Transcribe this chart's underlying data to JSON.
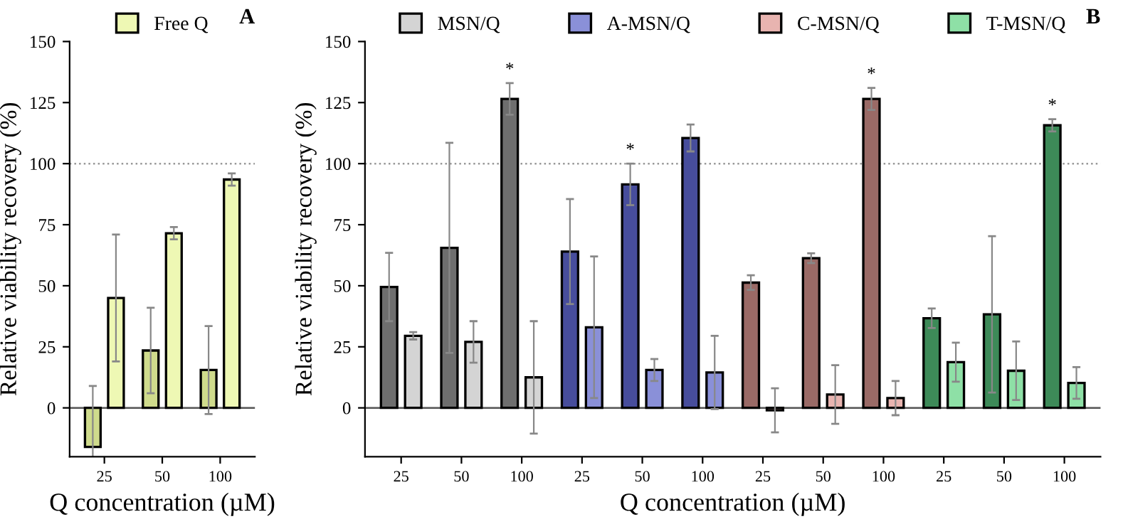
{
  "chart_data": [
    {
      "type": "bar",
      "ylabel": "Relative viability recovery (%)",
      "xlabel": "Q concentration (µM)",
      "categories": [
        "25",
        "50",
        "100"
      ],
      "ylim": [
        -20,
        150
      ],
      "yticks": [
        0,
        25,
        50,
        75,
        100,
        125,
        150
      ],
      "legend": "top",
      "grid": false,
      "annotations": [
        "A"
      ],
      "ref_lines": [
        {
          "axis": "y",
          "value": 100,
          "label": null,
          "color": "#999999",
          "line_style": "dotted"
        },
        {
          "axis": "y",
          "value": 0,
          "label": null,
          "color": "#555555",
          "line_style": "solid"
        }
      ],
      "series": [
        {
          "color": "#cfdb8c",
          "values": [
            -16,
            23.5,
            15.5
          ],
          "errors": [
            25,
            17.5,
            18
          ]
        },
        {
          "name": "Free Q",
          "color": "#eef8b4",
          "values": [
            45,
            71.5,
            93.5
          ],
          "errors": [
            26,
            2.5,
            2.5
          ]
        }
      ]
    },
    {
      "type": "bar",
      "ylabel": "Relative viability recovery (%)",
      "xlabel": "Q concentration (µM)",
      "categories": [
        "25",
        "50",
        "100",
        "25",
        "50",
        "100",
        "25",
        "50",
        "100",
        "25",
        "50",
        "100"
      ],
      "ylim": [
        -20,
        150
      ],
      "yticks": [
        0,
        25,
        50,
        75,
        100,
        125,
        150
      ],
      "legend": "top",
      "grid": false,
      "annotations": [
        "B"
      ],
      "ref_lines": [
        {
          "axis": "y",
          "value": 100,
          "label": null,
          "color": "#999999",
          "line_style": "dotted"
        },
        {
          "axis": "y",
          "value": 0,
          "label": null,
          "color": "#555555",
          "line_style": "solid"
        }
      ],
      "series": [
        {
          "color": "#6e6e6e",
          "values": [
            49.5,
            65.5,
            126.5,
            null,
            null,
            null,
            null,
            null,
            null,
            null,
            null,
            null
          ],
          "errors": [
            14,
            43,
            6.5,
            null,
            null,
            null,
            null,
            null,
            null,
            null,
            null,
            null
          ],
          "value_labels": [
            null,
            null,
            "*",
            null,
            null,
            null,
            null,
            null,
            null,
            null,
            null,
            null
          ]
        },
        {
          "name": "MSN/Q",
          "color": "#d4d4d4",
          "values": [
            29.5,
            27,
            12.5,
            null,
            null,
            null,
            null,
            null,
            null,
            null,
            null,
            null
          ],
          "errors": [
            1.5,
            8.5,
            23,
            null,
            null,
            null,
            null,
            null,
            null,
            null,
            null,
            null
          ]
        },
        {
          "color": "#474d9c",
          "values": [
            null,
            null,
            null,
            64,
            91.5,
            110.5,
            null,
            null,
            null,
            null,
            null,
            null
          ],
          "errors": [
            null,
            null,
            null,
            21.5,
            8.5,
            5.5,
            null,
            null,
            null,
            null,
            null,
            null
          ],
          "value_labels": [
            null,
            null,
            null,
            null,
            "*",
            null,
            null,
            null,
            null,
            null,
            null,
            null
          ]
        },
        {
          "name": "A-MSN/Q",
          "color": "#8a90d8",
          "values": [
            null,
            null,
            null,
            33,
            15.5,
            14.5,
            null,
            null,
            null,
            null,
            null,
            null
          ],
          "errors": [
            null,
            null,
            null,
            29,
            4.5,
            15,
            null,
            null,
            null,
            null,
            null,
            null
          ]
        },
        {
          "color": "#9a6a66",
          "values": [
            null,
            null,
            null,
            null,
            null,
            null,
            51.3,
            61.3,
            126.5,
            null,
            null,
            null
          ],
          "errors": [
            null,
            null,
            null,
            null,
            null,
            null,
            3,
            2,
            4.5,
            null,
            null,
            null
          ],
          "value_labels": [
            null,
            null,
            null,
            null,
            null,
            null,
            null,
            null,
            "*",
            null,
            null,
            null
          ]
        },
        {
          "name": "C-MSN/Q",
          "color": "#e8b4b0",
          "values": [
            null,
            null,
            null,
            null,
            null,
            null,
            -1,
            5.5,
            4,
            null,
            null,
            null
          ],
          "errors": [
            null,
            null,
            null,
            null,
            null,
            null,
            9,
            12,
            7,
            null,
            null,
            null
          ]
        },
        {
          "color": "#3d8a58",
          "values": [
            null,
            null,
            null,
            null,
            null,
            null,
            null,
            null,
            null,
            36.7,
            38.3,
            115.7
          ],
          "errors": [
            null,
            null,
            null,
            null,
            null,
            null,
            null,
            null,
            null,
            4,
            32,
            2.5
          ],
          "value_labels": [
            null,
            null,
            null,
            null,
            null,
            null,
            null,
            null,
            null,
            null,
            null,
            "*"
          ]
        },
        {
          "name": "T-MSN/Q",
          "color": "#8ee0a6",
          "values": [
            null,
            null,
            null,
            null,
            null,
            null,
            null,
            null,
            null,
            18.7,
            15.2,
            10.2
          ],
          "errors": [
            null,
            null,
            null,
            null,
            null,
            null,
            null,
            null,
            null,
            8,
            12,
            6.5
          ]
        }
      ]
    }
  ]
}
